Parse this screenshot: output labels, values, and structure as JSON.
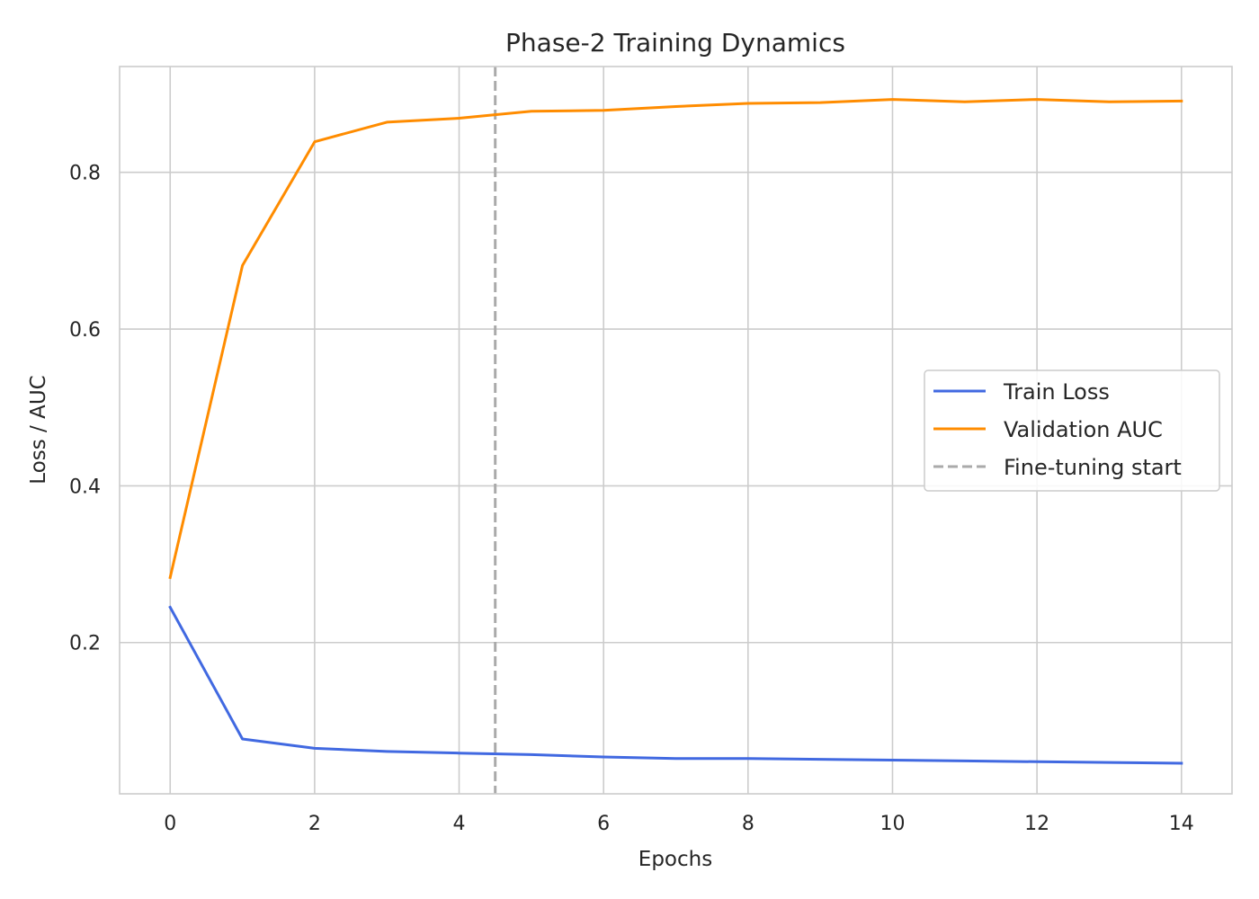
{
  "chart_data": {
    "type": "line",
    "title": "Phase-2 Training Dynamics",
    "xlabel": "Epochs",
    "ylabel": "Loss / AUC",
    "xlim": [
      -0.7,
      14.7
    ],
    "ylim": [
      0.007,
      0.935
    ],
    "xticks": [
      0,
      2,
      4,
      6,
      8,
      10,
      12,
      14
    ],
    "yticks": [
      0.2,
      0.4,
      0.6,
      0.8
    ],
    "xtick_labels": [
      "0",
      "2",
      "4",
      "6",
      "8",
      "10",
      "12",
      "14"
    ],
    "ytick_labels": [
      "0.2",
      "0.4",
      "0.6",
      "0.8"
    ],
    "grid": true,
    "legend_position": "center-right",
    "x": [
      0,
      1,
      2,
      3,
      4,
      5,
      6,
      7,
      8,
      9,
      10,
      11,
      12,
      13,
      14
    ],
    "series": [
      {
        "name": "Train Loss",
        "color": "#4169e1",
        "style": "solid",
        "values": [
          0.245,
          0.077,
          0.065,
          0.061,
          0.059,
          0.057,
          0.054,
          0.052,
          0.052,
          0.051,
          0.05,
          0.049,
          0.048,
          0.047,
          0.046
        ]
      },
      {
        "name": "Validation AUC",
        "color": "#ff8c00",
        "style": "solid",
        "values": [
          0.283,
          0.681,
          0.839,
          0.864,
          0.869,
          0.878,
          0.879,
          0.884,
          0.888,
          0.889,
          0.893,
          0.89,
          0.893,
          0.89,
          0.891
        ]
      }
    ],
    "vlines": [
      {
        "name": "Fine-tuning start",
        "x": 4.5,
        "color": "#aaaaaa",
        "style": "dashed"
      }
    ]
  }
}
